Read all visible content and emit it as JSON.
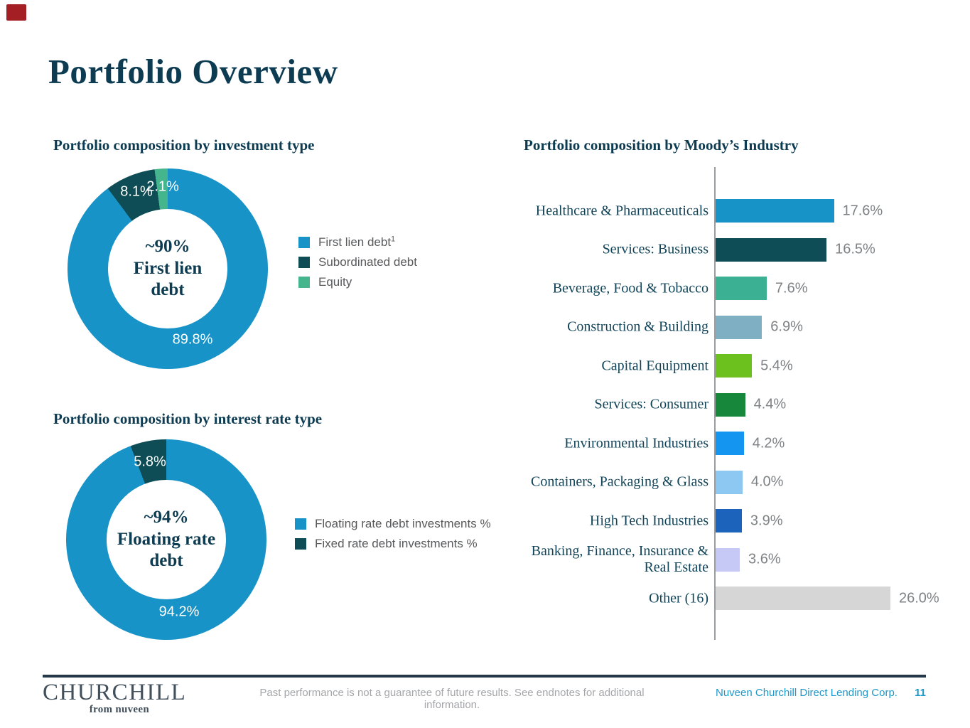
{
  "slide": {
    "title": "Portfolio Overview"
  },
  "chart_data": [
    {
      "type": "pie",
      "donut": true,
      "title": "Portfolio composition by investment type",
      "labels": [
        "First lien debt",
        "Subordinated debt",
        "Equity"
      ],
      "values": [
        89.8,
        8.1,
        2.1
      ],
      "colors": [
        "#1793c7",
        "#0e4d55",
        "#45b58d"
      ],
      "slice_labels": [
        "89.8%",
        "8.1%",
        "2.1%"
      ],
      "center_text": {
        "line1": "~90%",
        "line2": "First lien",
        "line3": "debt"
      },
      "legend_position": "right",
      "legend": [
        {
          "label": "First lien debt",
          "sup": "1",
          "color": "#1793c7"
        },
        {
          "label": "Subordinated debt",
          "sup": "",
          "color": "#0e4d55"
        },
        {
          "label": "Equity",
          "sup": "",
          "color": "#45b58d"
        }
      ]
    },
    {
      "type": "pie",
      "donut": true,
      "title": "Portfolio composition by interest rate type",
      "labels": [
        "Floating rate debt investments %",
        "Fixed rate debt investments %"
      ],
      "values": [
        94.2,
        5.8
      ],
      "colors": [
        "#1793c7",
        "#0e4d55"
      ],
      "slice_labels": [
        "94.2%",
        "5.8%"
      ],
      "center_text": {
        "line1": "~94%",
        "line2": "Floating rate",
        "line3": "debt"
      },
      "legend_position": "right",
      "legend": [
        {
          "label": "Floating rate debt investments %",
          "sup": "",
          "color": "#1793c7"
        },
        {
          "label": "Fixed rate debt investments %",
          "sup": "",
          "color": "#0e4d55"
        }
      ]
    },
    {
      "type": "bar",
      "orientation": "horizontal",
      "title": "Portfolio composition by Moody’s Industry",
      "categories": [
        "Healthcare & Pharmaceuticals",
        "Services: Business",
        "Beverage, Food & Tobacco",
        "Construction & Building",
        "Capital Equipment",
        "Services: Consumer",
        "Environmental Industries",
        "Containers, Packaging & Glass",
        "High Tech Industries",
        "Banking, Finance, Insurance & Real Estate",
        "Other (16)"
      ],
      "values": [
        17.6,
        16.5,
        7.6,
        6.9,
        5.4,
        4.4,
        4.2,
        4.0,
        3.9,
        3.6,
        26.0
      ],
      "value_labels": [
        "17.6%",
        "16.5%",
        "7.6%",
        "6.9%",
        "5.4%",
        "4.4%",
        "4.2%",
        "4.0%",
        "3.9%",
        "3.6%",
        "26.0%"
      ],
      "colors": [
        "#1793c7",
        "#0e4d55",
        "#3bb092",
        "#7fafc2",
        "#6cc11e",
        "#17873c",
        "#1495f0",
        "#8cc8f2",
        "#1b63bb",
        "#c6c9f5",
        "#d6d6d6"
      ],
      "xlim": [
        0,
        30
      ],
      "grid": false,
      "legend_position": "none"
    }
  ],
  "footer": {
    "logo_primary": "CHURCHILL",
    "logo_secondary": "from nuveen",
    "disclaimer": "Past performance is not a guarantee of future results. See endnotes for additional information.",
    "company": "Nuveen Churchill Direct Lending Corp.",
    "page_number": "11"
  },
  "colors": {
    "accent_blue": "#1793c7",
    "dark_teal": "#0e4d55",
    "equity_green": "#45b58d",
    "title_navy": "#0d3c52",
    "value_gray": "#7f8285",
    "legend_gray": "#58595b",
    "axis_gray": "#9a9da0",
    "footer_rule": "#24384a",
    "footer_teal": "#1f97c9",
    "logo_slate": "#42505c",
    "disclaimer_gray": "#a4a6a9",
    "corner_mark_red": "#a31f24",
    "other_gray": "#d6d6d6"
  }
}
